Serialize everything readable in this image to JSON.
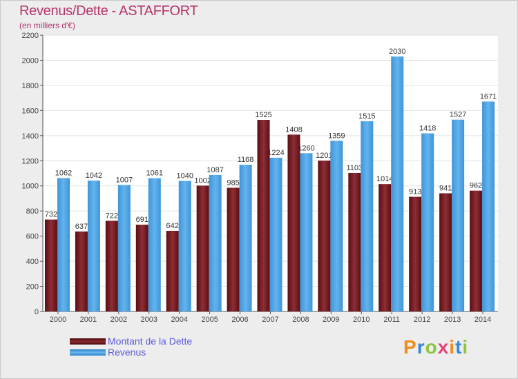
{
  "header": {
    "title": "Revenus/Dette - ASTAFFORT",
    "subtitle": "(en milliers d'€)"
  },
  "logo": {
    "text": "Proxiti"
  },
  "colors": {
    "dette": "#7a1e24",
    "revenus": "#4aa3e6",
    "title": "#b5336c",
    "legend_text": "#5a5adc"
  },
  "chart_data": {
    "type": "bar",
    "categories": [
      "2000",
      "2001",
      "2002",
      "2003",
      "2004",
      "2005",
      "2006",
      "2007",
      "2008",
      "2009",
      "2010",
      "2011",
      "2012",
      "2013",
      "2014"
    ],
    "series": [
      {
        "name": "Montant de la Dette",
        "values": [
          732,
          637,
          722,
          691,
          642,
          1002,
          985,
          1525,
          1408,
          1201,
          1103,
          1014,
          913,
          941,
          962
        ]
      },
      {
        "name": "Revenus",
        "values": [
          1062,
          1042,
          1007,
          1061,
          1040,
          1087,
          1168,
          1224,
          1260,
          1359,
          1515,
          2030,
          1418,
          1527,
          1671
        ]
      }
    ],
    "title": "Revenus/Dette - ASTAFFORT",
    "ylabel": "(en milliers d'€)",
    "ylim": [
      0,
      2200
    ],
    "yticks": [
      0,
      200,
      400,
      600,
      800,
      1000,
      1200,
      1400,
      1600,
      1800,
      2000,
      2200
    ],
    "grid": true,
    "legend": "bottom-left"
  }
}
